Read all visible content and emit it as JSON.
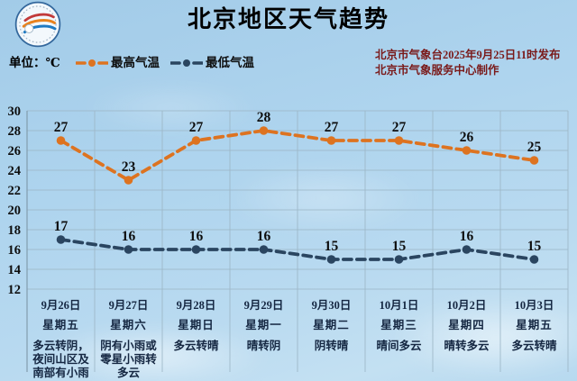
{
  "header": {
    "title": "北京地区天气趋势",
    "unit_label": "单位：℃",
    "issued_line1": "北京市气象台2025年9月25日11时发布",
    "issued_line2": "北京市气象服务中心制作"
  },
  "legend": [
    {
      "label": "最高气温",
      "color": "#dd7320"
    },
    {
      "label": "最低气温",
      "color": "#2a4560"
    }
  ],
  "chart_data": {
    "type": "line",
    "title": "北京地区天气趋势",
    "unit": "℃",
    "x_categories": {
      "dates": [
        "9月26日",
        "9月27日",
        "9月28日",
        "9月29日",
        "9月30日",
        "10月1日",
        "10月2日",
        "10月3日"
      ],
      "weekdays": [
        "星期五",
        "星期六",
        "星期日",
        "星期一",
        "星期二",
        "星期三",
        "星期四",
        "星期五"
      ],
      "weather": [
        "多云转阴，夜间山区及南部有小雨",
        "阴有小雨或零星小雨转多云",
        "多云转晴",
        "晴转阴",
        "阴转晴",
        "晴间多云",
        "晴转多云",
        "多云转晴"
      ]
    },
    "series": [
      {
        "name": "最高气温",
        "color": "#dd7320",
        "values": [
          27,
          23,
          27,
          28,
          27,
          27,
          26,
          25
        ]
      },
      {
        "name": "最低气温",
        "color": "#2a4560",
        "values": [
          17,
          16,
          16,
          16,
          15,
          15,
          16,
          15
        ]
      }
    ],
    "ylim": [
      12,
      30
    ],
    "ytick_step": 2,
    "grid": true,
    "line_style": "dashed",
    "value_labels": "above-points",
    "legend_position": "top-left"
  },
  "colors": {
    "gridline": "#9db7c7",
    "axis_line": "#7e98a9",
    "tick_label": "#0d0d0d",
    "value_label": "#0d0d0d",
    "x_label": "#152742",
    "issued_text": "#7a1a1a",
    "title_text": "#000000",
    "sky": "#aed4ee"
  }
}
